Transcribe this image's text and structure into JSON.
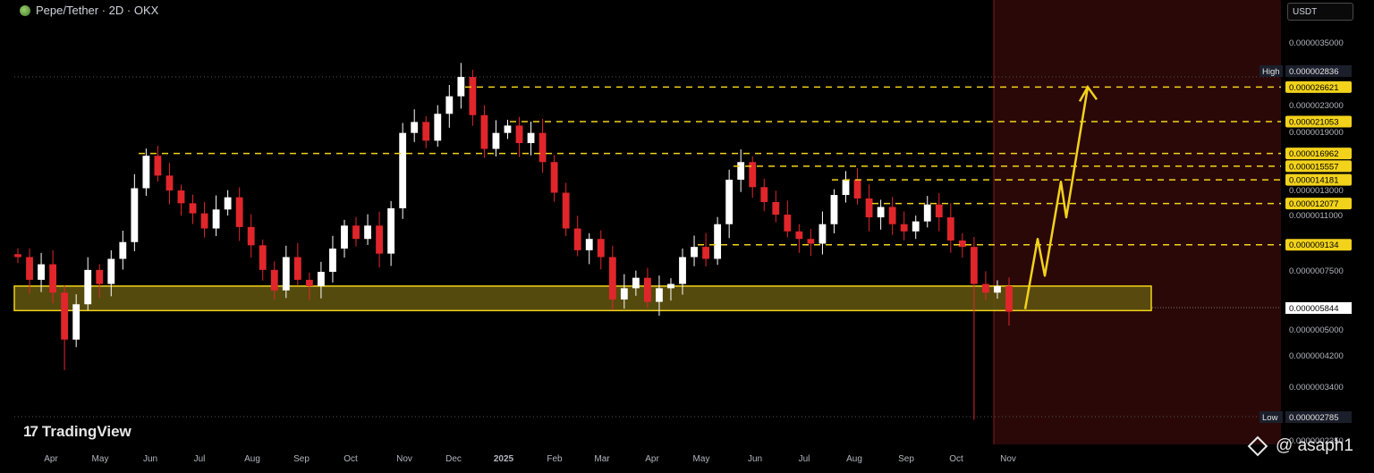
{
  "header": {
    "symbol_title": "Pepe/Tether · 2D · OKX",
    "currency": "USDT"
  },
  "branding": {
    "tradingview_label": "TradingView",
    "watermark": "@ asaph1"
  },
  "colors": {
    "up": "#ffffff",
    "down": "#e0262b",
    "level_line": "#f2d21b",
    "support_zone_fill": "#5d5210",
    "support_zone_border": "#f2d21b",
    "projection_zone": "#2a0808",
    "arrow": "#f2d21b"
  },
  "icons": {
    "symbol": "pepe-logo-icon",
    "brand": "tradingview-logo-icon",
    "watermark": "binance-diamond-icon"
  },
  "chart_data": {
    "type": "candlestick",
    "x_tick_labels": [
      "Apr",
      "May",
      "Jun",
      "Jul",
      "Aug",
      "Sep",
      "Oct",
      "Nov",
      "Dec",
      "2025",
      "Feb",
      "Mar",
      "Apr",
      "May",
      "Jun",
      "Jul",
      "Aug",
      "Sep",
      "Oct",
      "Nov"
    ],
    "y_tick_labels": [
      "0.0000035000",
      "0.0000023000",
      "0.0000019000",
      "0.0000013000",
      "0.0000011000",
      "0.0000007500",
      "0.0000005000",
      "0.0000004200",
      "0.0000003400",
      "0.0000002350"
    ],
    "y_scale": "log",
    "high": {
      "label": "High",
      "value": "0.000002836"
    },
    "low": {
      "label": "Low",
      "value": "0.000002785"
    },
    "current_price": "0.000005844",
    "resistance_levels": [
      "0.000026621",
      "0.000021053",
      "0.000016962",
      "0.000015557",
      "0.000014181",
      "0.000012077",
      "0.000009134"
    ],
    "support_zone": {
      "from": 5.844e-06,
      "to": 6.9e-06
    },
    "projection_path_prices": [
      5.9e-06,
      9.5e-06,
      7.4e-06,
      1.4e-05,
      1.1e-05,
      2.6621e-05
    ],
    "closes": [
      8.4e-06,
      7.2e-06,
      8e-06,
      6.6e-06,
      4.8e-06,
      6.1e-06,
      7.7e-06,
      7e-06,
      8.3e-06,
      9.3e-06,
      1.34e-05,
      1.67e-05,
      1.46e-05,
      1.32e-05,
      1.21e-05,
      1.13e-05,
      1.02e-05,
      1.16e-05,
      1.26e-05,
      1.03e-05,
      9.1e-06,
      7.7e-06,
      6.7e-06,
      8.4e-06,
      7.2e-06,
      6.9e-06,
      7.6e-06,
      8.9e-06,
      1.04e-05,
      9.5e-06,
      1.04e-05,
      8.6e-06,
      1.17e-05,
      1.95e-05,
      2.1e-05,
      1.85e-05,
      2.22e-05,
      2.5e-05,
      2.85e-05,
      2.2e-05,
      1.75e-05,
      1.95e-05,
      2.05e-05,
      1.82e-05,
      1.95e-05,
      1.6e-05,
      1.3e-05,
      1.02e-05,
      8.8e-06,
      9.5e-06,
      8.4e-06,
      6.3e-06,
      6.8e-06,
      7.3e-06,
      6.2e-06,
      6.8e-06,
      7e-06,
      8.4e-06,
      9e-06,
      8.3e-06,
      1.05e-05,
      1.42e-05,
      1.6e-05,
      1.35e-05,
      1.22e-05,
      1.12e-05,
      1e-05,
      9.5e-06,
      9.2e-06,
      1.05e-05,
      1.28e-05,
      1.42e-05,
      1.25e-05,
      1.1e-05,
      1.18e-05,
      1.05e-05,
      1e-05,
      1.07e-05,
      1.2e-05,
      1.1e-05,
      9.4e-06,
      9e-06,
      7e-06,
      6.6e-06,
      6.9e-06,
      5.8e-06
    ]
  }
}
